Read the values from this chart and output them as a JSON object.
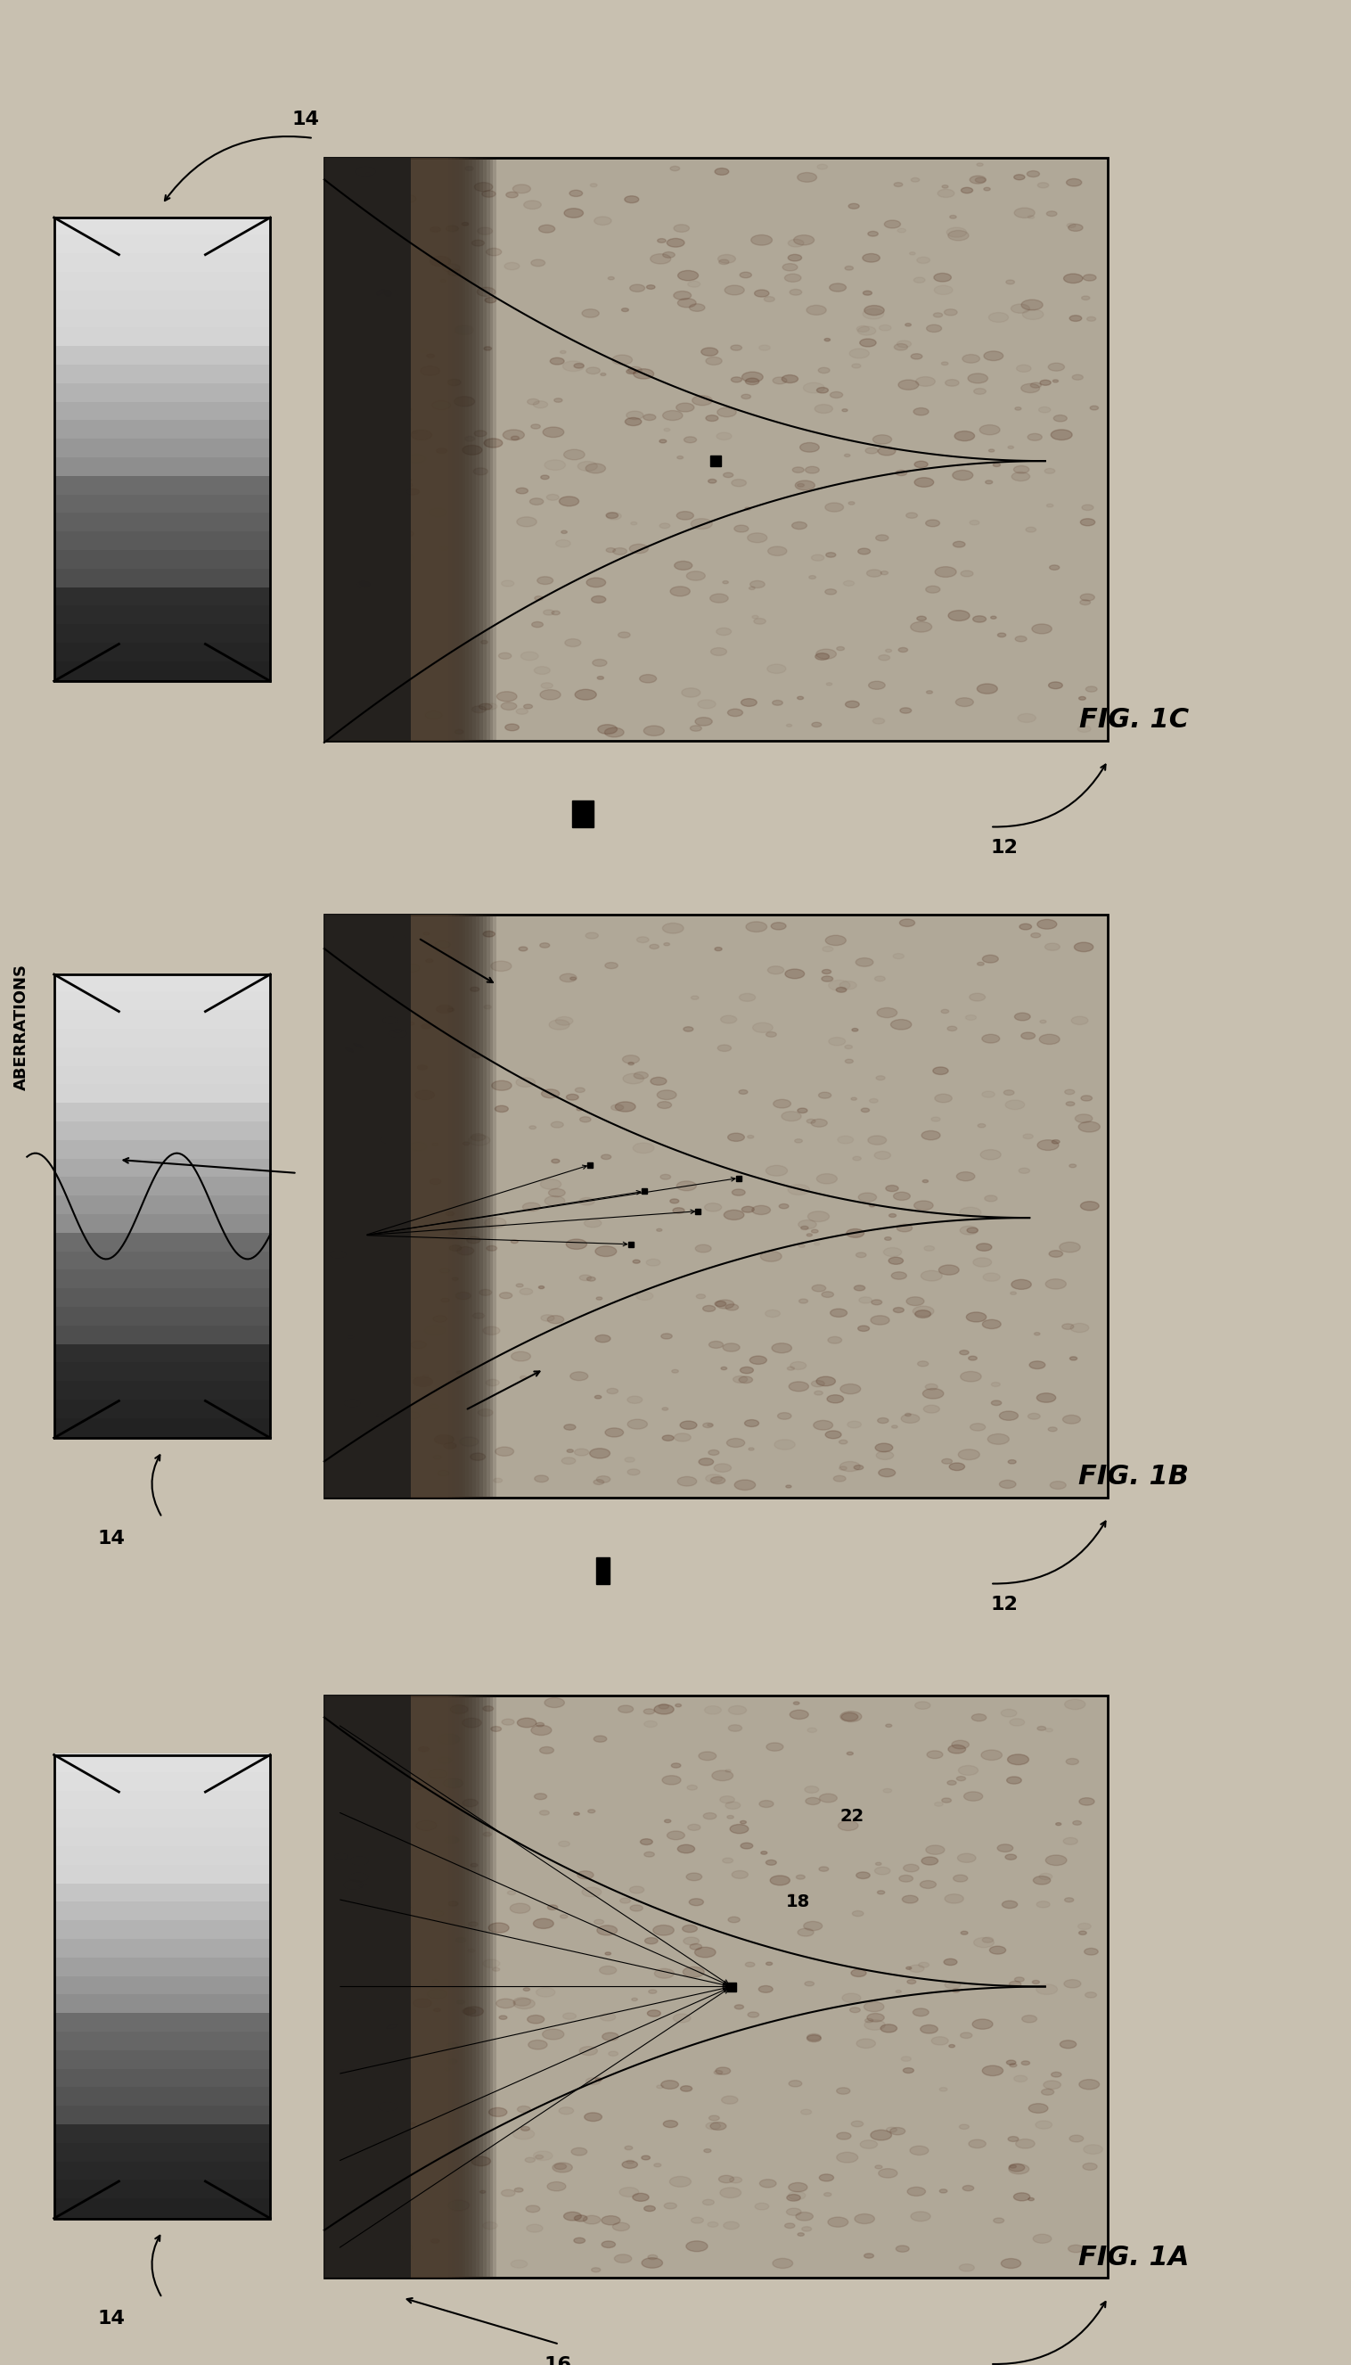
{
  "bg_color": "#d8d0c0",
  "fig_width": 15.16,
  "fig_height": 26.53,
  "fig1a_label": "FIG. 1A",
  "fig1b_label": "FIG. 1B",
  "fig1c_label": "FIG. 1C",
  "label_12": "12",
  "label_14": "14",
  "label_16": "16",
  "label_18": "18",
  "label_22": "22",
  "label_aberrations": "ABERRATIONS"
}
